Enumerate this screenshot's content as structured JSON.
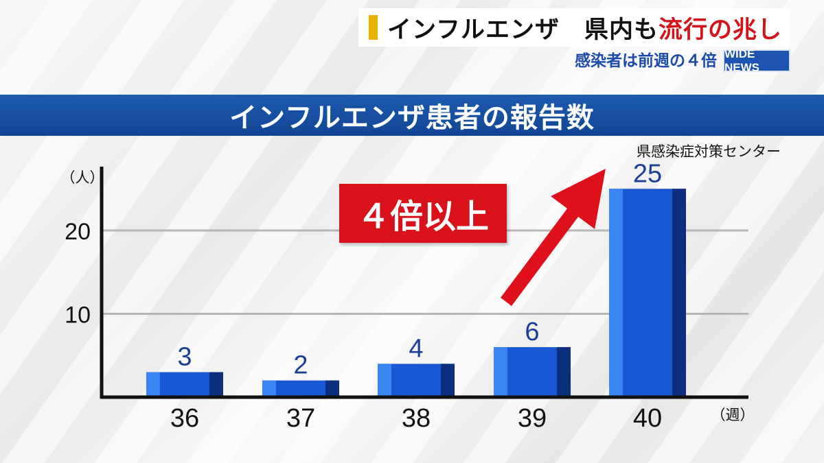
{
  "headline": {
    "prefix": "インフルエンザ　県内も",
    "highlight": "流行の兆し"
  },
  "subheadline": "感染者は前週の４倍",
  "logo": "WIDE NEWS",
  "banner_title": "インフルエンザ患者の報告数",
  "source": "県感染症対策センター",
  "callout": "４倍以上",
  "colors": {
    "bar_front": "#1a57d4",
    "bar_left": "#3b85f2",
    "bar_right": "#0d2f80",
    "callout": "#d8111b",
    "value_label": "#1a3f94",
    "banner": "#17509f"
  },
  "chart_data": {
    "type": "bar",
    "categories": [
      "36",
      "37",
      "38",
      "39",
      "40"
    ],
    "values": [
      3,
      2,
      4,
      6,
      25
    ],
    "value_labels": [
      "3",
      "2",
      "4",
      "6",
      "25"
    ],
    "xlabel": "（週）",
    "ylabel": "（人）",
    "yticks": [
      10,
      20
    ],
    "ylim": [
      0,
      25
    ],
    "grid": true,
    "legend": "none"
  }
}
